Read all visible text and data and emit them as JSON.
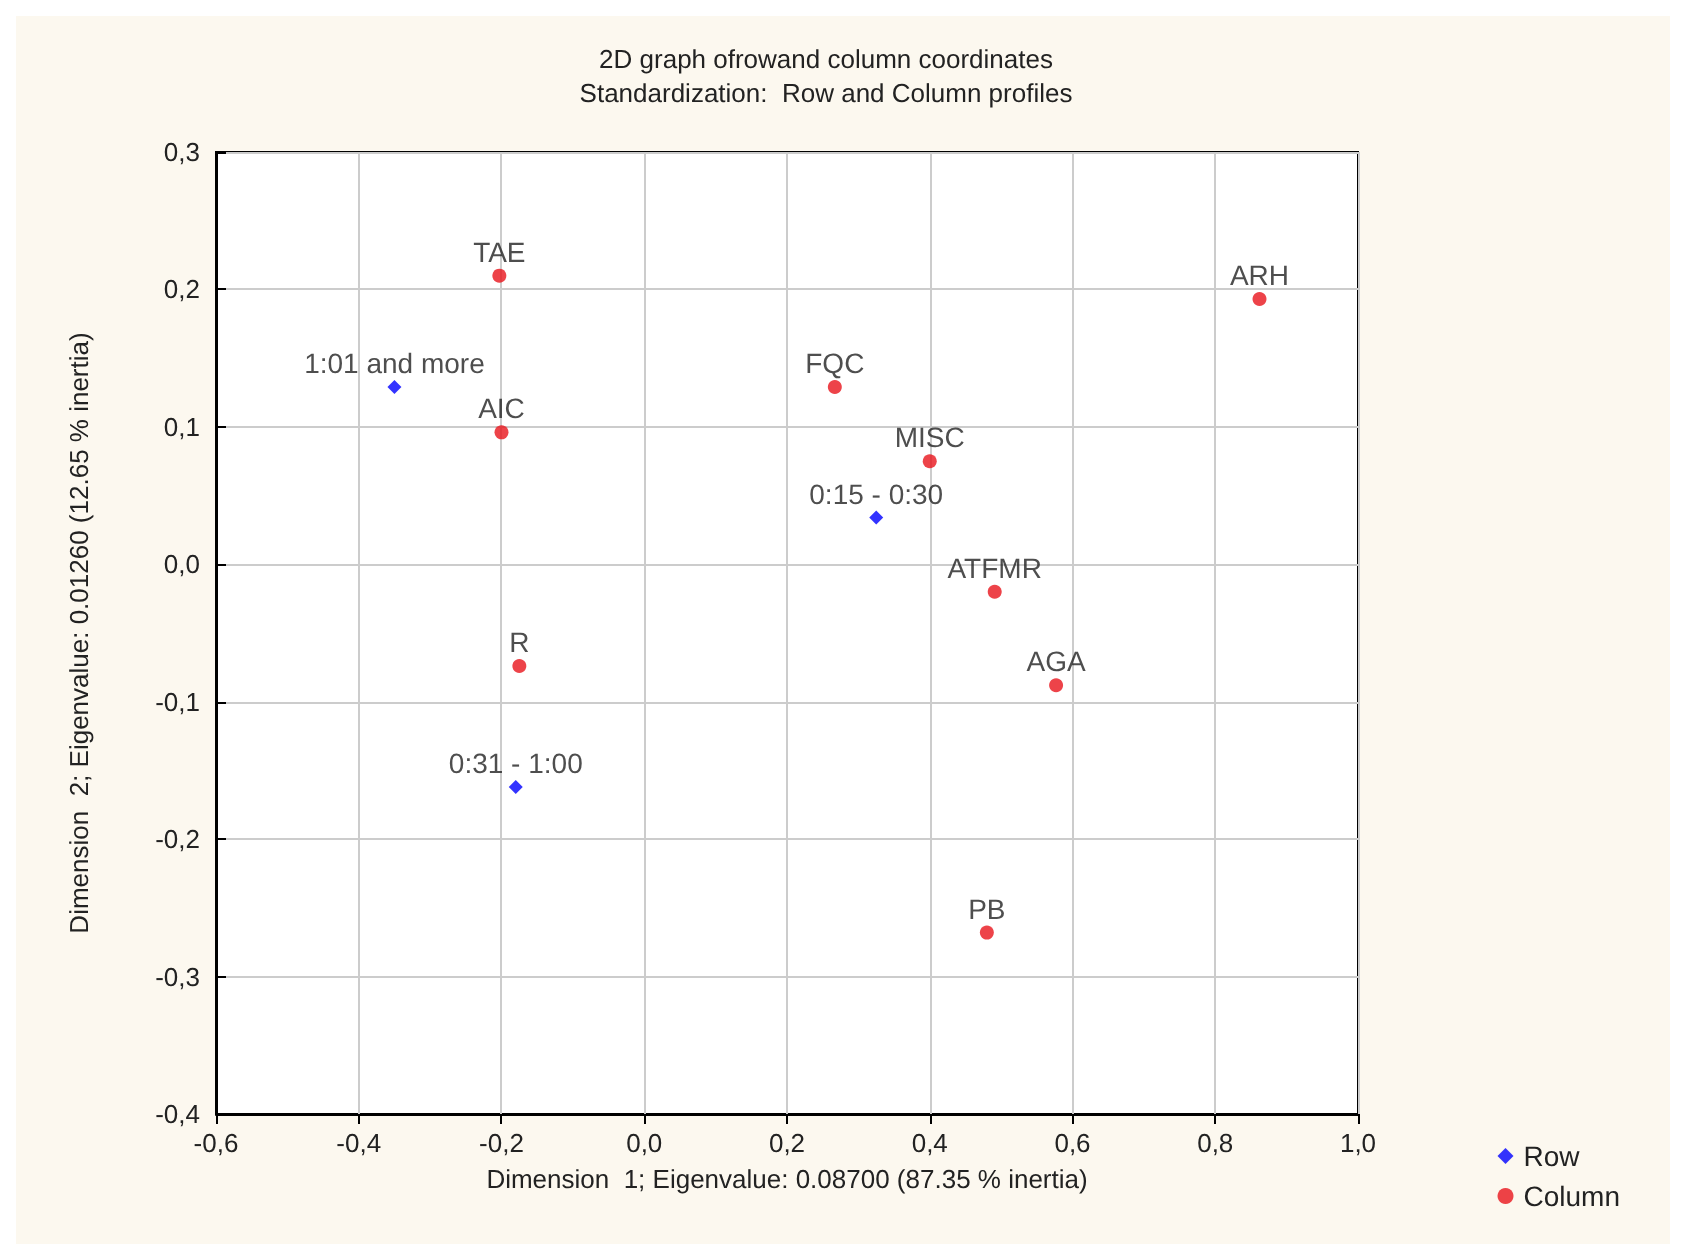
{
  "chart_data": {
    "type": "scatter",
    "title": "2D graph ofrowand column coordinates",
    "subtitle": "Standardization:  Row and Column profiles",
    "xlabel": "Dimension  1; Eigenvalue: 0.08700 (87.35 % inertia)",
    "ylabel": "Dimension  2; Eigenvalue: 0.01260 (12.65 % inertia)",
    "series": [
      {
        "name": "Row",
        "color": "#0000ff",
        "marker": "diamond",
        "x": [
          -0.35,
          0.325,
          -0.18
        ],
        "values": [
          0.129,
          0.034,
          -0.162
        ]
      },
      {
        "name": "Column",
        "color": "#e8141c",
        "marker": "circle",
        "x": [
          -0.203,
          -0.2,
          -0.175,
          0.267,
          0.4,
          0.491,
          0.577,
          0.48,
          0.862
        ],
        "values": [
          0.21,
          0.096,
          -0.074,
          0.129,
          0.075,
          -0.02,
          -0.088,
          -0.268,
          0.193
        ]
      }
    ],
    "annotations": [
      {
        "text": "1:01 and more",
        "x": -0.35,
        "y": 0.129
      },
      {
        "text": "0:15 - 0:30",
        "x": 0.325,
        "y": 0.034
      },
      {
        "text": "0:31 - 1:00",
        "x": -0.18,
        "y": -0.162
      },
      {
        "text": "TAE",
        "x": -0.203,
        "y": 0.21
      },
      {
        "text": "AIC",
        "x": -0.2,
        "y": 0.096
      },
      {
        "text": "R",
        "x": -0.175,
        "y": -0.074
      },
      {
        "text": "FQC",
        "x": 0.267,
        "y": 0.129
      },
      {
        "text": "MISC",
        "x": 0.4,
        "y": 0.075
      },
      {
        "text": "ATFMR",
        "x": 0.491,
        "y": -0.02
      },
      {
        "text": "AGA",
        "x": 0.577,
        "y": -0.088
      },
      {
        "text": "PB",
        "x": 0.48,
        "y": -0.268
      },
      {
        "text": "ARH",
        "x": 0.862,
        "y": 0.193
      }
    ],
    "xlim": [
      -0.6,
      1.0
    ],
    "ylim": [
      -0.4,
      0.3
    ],
    "xticks": [
      {
        "value": -0.6,
        "label": "-0,6"
      },
      {
        "value": -0.4,
        "label": "-0,4"
      },
      {
        "value": -0.2,
        "label": "-0,2"
      },
      {
        "value": 0,
        "label": "0,0"
      },
      {
        "value": 0.2,
        "label": "0,2"
      },
      {
        "value": 0.4,
        "label": "0,4"
      },
      {
        "value": 0.6,
        "label": "0,6"
      },
      {
        "value": 0.8,
        "label": "0,8"
      },
      {
        "value": 1.0,
        "label": "1,0"
      }
    ],
    "yticks": [
      {
        "value": -0.4,
        "label": "-0,4"
      },
      {
        "value": -0.3,
        "label": "-0,3"
      },
      {
        "value": -0.2,
        "label": "-0,2"
      },
      {
        "value": -0.1,
        "label": "-0,1"
      },
      {
        "value": 0,
        "label": "0,0"
      },
      {
        "value": 0.1,
        "label": "0,1"
      },
      {
        "value": 0.2,
        "label": "0,2"
      },
      {
        "value": 0.3,
        "label": "0,3"
      }
    ],
    "grid": true,
    "legend": "bottom right"
  }
}
